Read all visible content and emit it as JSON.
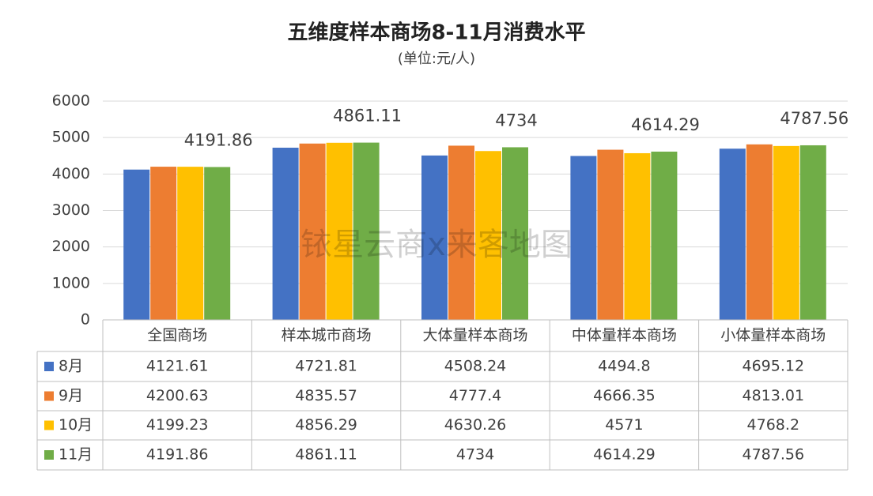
{
  "chart_data": {
    "type": "bar",
    "title": "五维度样本商场8-11月消费水平",
    "subtitle": "(单位:元/人)",
    "watermark": "铱星云商x来客地图",
    "categories": [
      "全国商场",
      "样本城市商场",
      "大体量样本商场",
      "中体量样本商场",
      "小体量样本商场"
    ],
    "series": [
      {
        "name": "8月",
        "color": "#4472c4",
        "values": [
          4121.61,
          4721.81,
          4508.24,
          4494.8,
          4695.12
        ]
      },
      {
        "name": "9月",
        "color": "#ed7d31",
        "values": [
          4200.63,
          4835.57,
          4777.4,
          4666.35,
          4813.01
        ]
      },
      {
        "name": "10月",
        "color": "#ffc000",
        "values": [
          4199.23,
          4856.29,
          4630.26,
          4571,
          4768.2
        ]
      },
      {
        "name": "11月",
        "color": "#70ad47",
        "values": [
          4191.86,
          4861.11,
          4734,
          4614.29,
          4787.56
        ]
      }
    ],
    "labeled_series": 3,
    "ylim": [
      0,
      6000
    ],
    "yticks": [
      0,
      1000,
      2000,
      3000,
      4000,
      5000,
      6000
    ],
    "grid": true
  }
}
